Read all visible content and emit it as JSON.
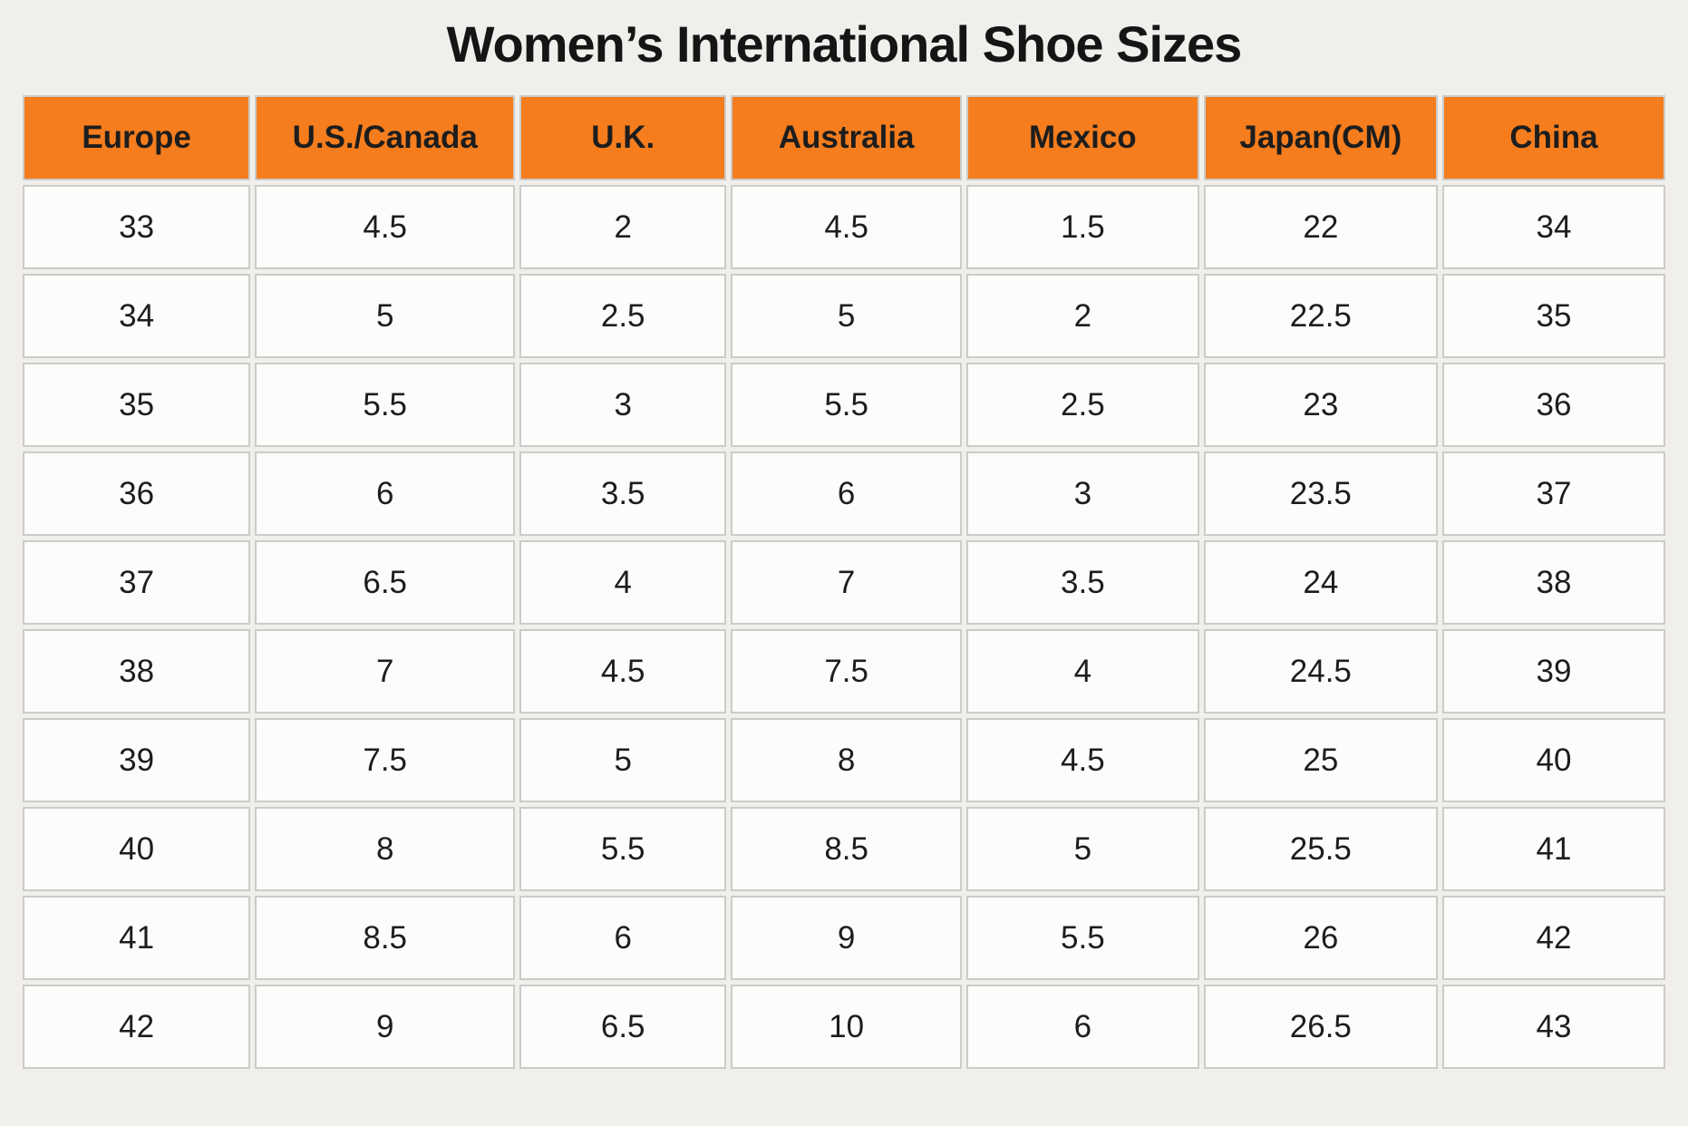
{
  "page": {
    "title": "Women’s International Shoe Sizes"
  },
  "colors": {
    "header_bg": "#f57d1e",
    "page_bg": "#f1efec",
    "cell_bg": "#fcfcfb",
    "cell_border": "#cccbc9",
    "text": "#1d1d1d"
  },
  "chart_data": {
    "type": "table",
    "title": "Women’s International Shoe Sizes",
    "columns": [
      "Europe",
      "U.S./Canada",
      "U.K.",
      "Australia",
      "Mexico",
      "Japan(CM)",
      "China"
    ],
    "rows": [
      [
        "33",
        "4.5",
        "2",
        "4.5",
        "1.5",
        "22",
        "34"
      ],
      [
        "34",
        "5",
        "2.5",
        "5",
        "2",
        "22.5",
        "35"
      ],
      [
        "35",
        "5.5",
        "3",
        "5.5",
        "2.5",
        "23",
        "36"
      ],
      [
        "36",
        "6",
        "3.5",
        "6",
        "3",
        "23.5",
        "37"
      ],
      [
        "37",
        "6.5",
        "4",
        "7",
        "3.5",
        "24",
        "38"
      ],
      [
        "38",
        "7",
        "4.5",
        "7.5",
        "4",
        "24.5",
        "39"
      ],
      [
        "39",
        "7.5",
        "5",
        "8",
        "4.5",
        "25",
        "40"
      ],
      [
        "40",
        "8",
        "5.5",
        "8.5",
        "5",
        "25.5",
        "41"
      ],
      [
        "41",
        "8.5",
        "6",
        "9",
        "5.5",
        "26",
        "42"
      ],
      [
        "42",
        "9",
        "6.5",
        "10",
        "6",
        "26.5",
        "43"
      ]
    ]
  }
}
